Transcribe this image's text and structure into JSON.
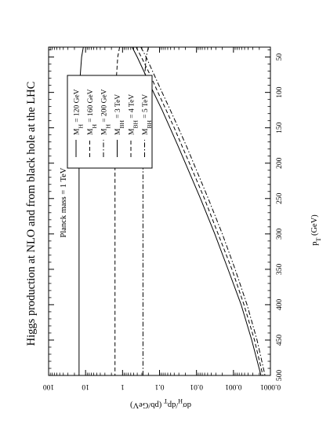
{
  "chart_data": {
    "type": "line",
    "orientation": "rotated-90-ccw",
    "title": "Higgs production at NLO and from black hole at the LHC",
    "subtitle": "Planck mass = 1 TeV",
    "xlabel": "p_T (GeV)",
    "ylabel": "dσ_H/dp_T (pb/GeV)",
    "xlim": [
      36,
      500
    ],
    "ylim": [
      0.0001,
      100
    ],
    "yscale": "log",
    "grid": false,
    "legend_position": "top-left",
    "x_ticks": [
      50,
      100,
      150,
      200,
      250,
      300,
      350,
      400,
      450,
      500
    ],
    "x_tick_labels": [
      "50",
      "100",
      "150",
      "200",
      "250",
      "300",
      "350",
      "400",
      "450",
      "500"
    ],
    "y_ticks": [
      0.0001,
      0.001,
      0.01,
      0.1,
      1,
      10,
      100
    ],
    "y_tick_labels": [
      "0.0001",
      "0.001",
      "0.01",
      "0.1",
      "1",
      "10",
      "100"
    ],
    "x": [
      36,
      50,
      75,
      100,
      125,
      150,
      175,
      200,
      250,
      300,
      350,
      400,
      450,
      500
    ],
    "series": [
      {
        "name": "M_H = 120 GeV",
        "dash": "solid",
        "values": [
          0.55,
          0.4,
          0.24,
          0.145,
          0.085,
          0.052,
          0.032,
          0.02,
          0.0078,
          0.0032,
          0.0014,
          0.00062,
          0.00032,
          0.00018
        ]
      },
      {
        "name": "M_H = 160 GeV",
        "dash": "dashed",
        "values": [
          0.43,
          0.31,
          0.18,
          0.11,
          0.066,
          0.04,
          0.025,
          0.0155,
          0.0061,
          0.0026,
          0.0011,
          0.00052,
          0.00027,
          0.00016
        ]
      },
      {
        "name": "M_H = 200 GeV",
        "dash": "dashdot",
        "values": [
          0.32,
          0.23,
          0.14,
          0.085,
          0.051,
          0.031,
          0.019,
          0.012,
          0.0048,
          0.002,
          0.0009,
          0.00043,
          0.00023,
          0.00014
        ]
      },
      {
        "name": "M_BH = 3 TeV",
        "dash": "solid",
        "values": [
          11.5,
          12.8,
          13.9,
          14.4,
          14.7,
          14.9,
          15.0,
          15.0,
          15.0,
          15.0,
          15.0,
          15.0,
          15.0,
          15.0
        ]
      },
      {
        "name": "M_BH = 4 TeV",
        "dash": "dashed",
        "values": [
          1.2,
          1.35,
          1.45,
          1.5,
          1.55,
          1.57,
          1.58,
          1.6,
          1.6,
          1.6,
          1.6,
          1.6,
          1.6,
          1.6
        ]
      },
      {
        "name": "M_BH = 5 TeV",
        "dash": "dashdot",
        "values": [
          0.2,
          0.23,
          0.25,
          0.265,
          0.27,
          0.275,
          0.28,
          0.28,
          0.28,
          0.28,
          0.28,
          0.28,
          0.28,
          0.28
        ]
      }
    ]
  }
}
